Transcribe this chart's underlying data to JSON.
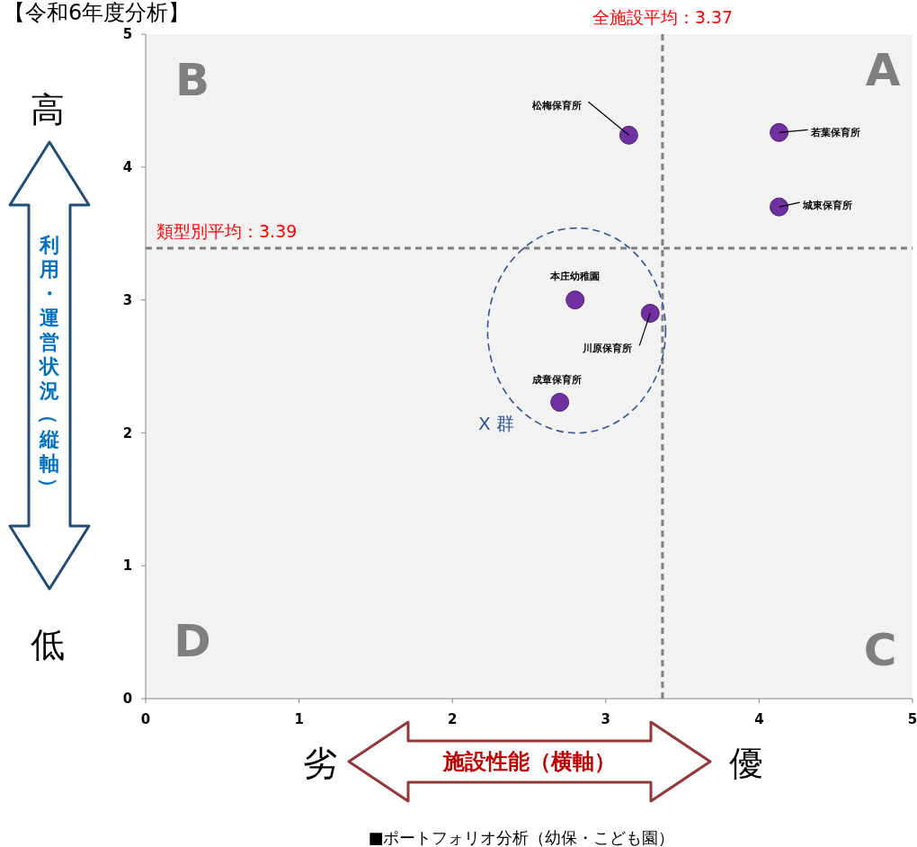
{
  "chart_data": {
    "type": "scatter",
    "title": "【令和6年度分析】",
    "xlabel": "施設性能（横軸）",
    "ylabel": "利用・運営状況（縦軸）",
    "series": [
      {
        "color": "#7030a0",
        "x": [
          3.15,
          4.13,
          4.13,
          2.8,
          3.29,
          2.7
        ],
        "values": [
          4.24,
          4.26,
          3.7,
          3.0,
          2.9,
          2.23
        ]
      }
    ],
    "xlim": [
      0,
      5
    ],
    "ylim": [
      0,
      5
    ],
    "xticks": [
      0,
      1,
      2,
      3,
      4,
      5
    ],
    "yticks": [
      0,
      1,
      2,
      3,
      4,
      5
    ],
    "grid": false,
    "marker": "circle",
    "ref_lines": [
      {
        "axis": "x",
        "value": 3.37,
        "label": "全施設平均：3.37",
        "color": "#808080",
        "line_style": "dashed"
      },
      {
        "axis": "y",
        "value": 3.39,
        "label": "類型別平均：3.39",
        "color": "#808080",
        "line_style": "dashed"
      }
    ],
    "annotations": [
      "A",
      "B",
      "C",
      "D",
      "高",
      "低",
      "劣",
      "優",
      "■ポートフォリオ分析（幼保・こども園）",
      "X 群",
      {
        "text": "松梅保育所",
        "x": 3.15,
        "y": 4.24
      },
      {
        "text": "若葉保育所",
        "x": 4.13,
        "y": 4.26
      },
      {
        "text": "城東保育所",
        "x": 4.13,
        "y": 3.7
      },
      {
        "text": "本庄幼稚園",
        "x": 2.8,
        "y": 3.0
      },
      {
        "text": "川原保育所",
        "x": 3.29,
        "y": 2.9
      },
      {
        "text": "成章保育所",
        "x": 2.7,
        "y": 2.23
      }
    ]
  }
}
